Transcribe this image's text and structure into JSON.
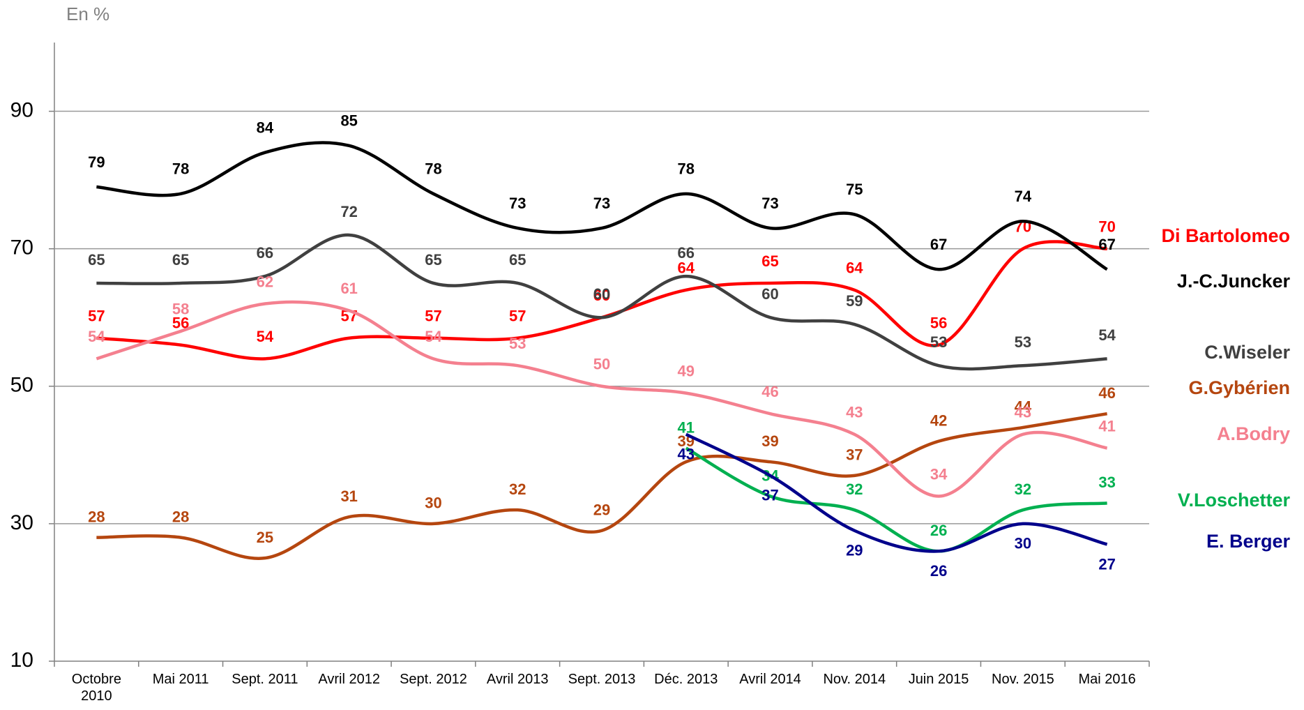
{
  "chart_data": {
    "type": "line",
    "y_axis_label": "En %",
    "categories": [
      "Octobre 2010",
      "Mai 2011",
      "Sept. 2011",
      "Avril 2012",
      "Sept. 2012",
      "Avril 2013",
      "Sept. 2013",
      "Déc. 2013",
      "Avril 2014",
      "Nov. 2014",
      "Juin 2015",
      "Nov. 2015",
      "Mai 2016"
    ],
    "series": [
      {
        "name": "Di Bartolomeo",
        "color": "#ff0000",
        "values": [
          57,
          56,
          54,
          57,
          57,
          57,
          60,
          64,
          65,
          64,
          56,
          70,
          70
        ]
      },
      {
        "name": "J.-C.Juncker",
        "color": "#000000",
        "values": [
          79,
          78,
          84,
          85,
          78,
          73,
          73,
          78,
          73,
          75,
          67,
          74,
          67
        ]
      },
      {
        "name": "C.Wiseler",
        "color": "#404040",
        "values": [
          65,
          65,
          66,
          72,
          65,
          65,
          60,
          66,
          60,
          59,
          53,
          53,
          54
        ]
      },
      {
        "name": "G.Gybérien",
        "color": "#b5460f",
        "values": [
          28,
          28,
          25,
          31,
          30,
          32,
          29,
          39,
          39,
          37,
          42,
          44,
          46
        ]
      },
      {
        "name": "A.Bodry",
        "color": "#f4808f",
        "values": [
          54,
          58,
          62,
          61,
          54,
          53,
          50,
          49,
          46,
          43,
          34,
          43,
          41
        ]
      },
      {
        "name": "V.Loschetter",
        "color": "#00b050",
        "values": [
          null,
          null,
          null,
          null,
          null,
          null,
          null,
          41,
          34,
          32,
          26,
          32,
          33
        ]
      },
      {
        "name": "E. Berger",
        "color": "#00008b",
        "values": [
          null,
          null,
          null,
          null,
          null,
          null,
          null,
          43,
          37,
          29,
          26,
          30,
          27
        ]
      }
    ],
    "ylim": [
      10,
      100
    ],
    "yticks": [
      10,
      30,
      50,
      70,
      90
    ],
    "grid": true
  }
}
